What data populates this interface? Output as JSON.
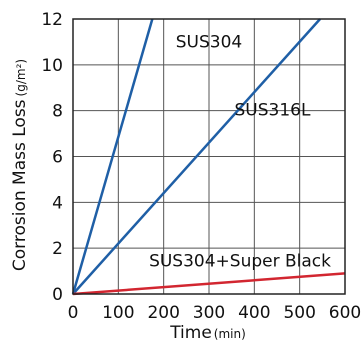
{
  "chart_data": {
    "type": "line",
    "title": "",
    "xlabel": "Time",
    "xlabel_unit": "min",
    "ylabel": "Corrosion Mass Loss",
    "ylabel_unit": "g/m²",
    "xlim": [
      0,
      600
    ],
    "ylim": [
      0,
      12
    ],
    "x_ticks": [
      0,
      100,
      200,
      300,
      400,
      500,
      600
    ],
    "y_ticks": [
      0,
      2,
      4,
      6,
      8,
      10,
      12
    ],
    "grid": true,
    "legend": "inline labels",
    "series": [
      {
        "name": "SUS304",
        "color": "#1f5fa6",
        "x": [
          0,
          175
        ],
        "y": [
          0,
          12
        ]
      },
      {
        "name": "SUS316L",
        "color": "#1f5fa6",
        "x": [
          0,
          545
        ],
        "y": [
          0,
          12
        ]
      },
      {
        "name": "SUS304+Super Black",
        "color": "#d22630",
        "x": [
          0,
          600
        ],
        "y": [
          0,
          0.9
        ]
      }
    ]
  }
}
